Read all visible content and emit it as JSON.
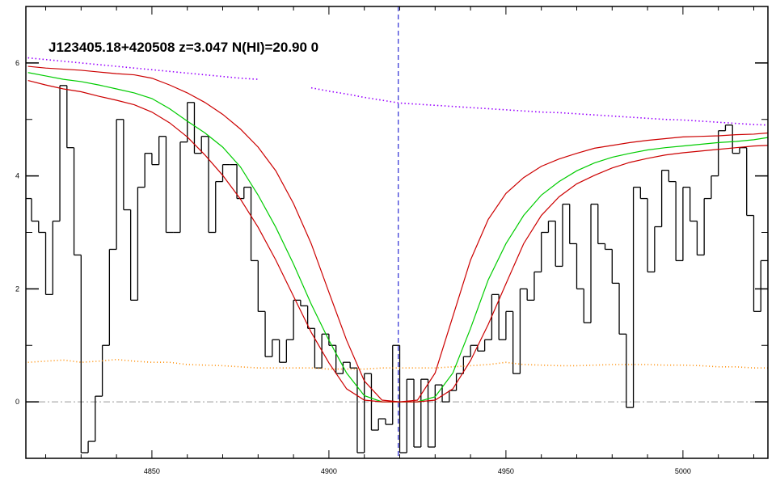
{
  "chart_data": {
    "type": "line",
    "title": "J123405.18+420508 z=3.047 N(HI)=20.90 0",
    "xlim": [
      4814.4,
      5024
    ],
    "ylim": [
      -1,
      7
    ],
    "xticks": [
      4850,
      4900,
      4950,
      5000
    ],
    "yticks": [
      0,
      2,
      4,
      6
    ],
    "xminorticks": [
      4820,
      4830,
      4840,
      4860,
      4870,
      4880,
      4890,
      4910,
      4920,
      4930,
      4940,
      4960,
      4970,
      4980,
      4990,
      5010,
      5020
    ],
    "yminorticks": [
      -1,
      1,
      3,
      5
    ],
    "zero_line": 0,
    "vline": {
      "x": 4919.6,
      "color": "#0000cc"
    },
    "spectrum": {
      "color": "#000000",
      "step": true,
      "x": [
        4815,
        4817,
        4819,
        4821,
        4823,
        4825,
        4827,
        4829,
        4831,
        4833,
        4835,
        4837,
        4839,
        4841,
        4843,
        4845,
        4847,
        4849,
        4851,
        4853,
        4855,
        4857,
        4859,
        4861,
        4863,
        4865,
        4867,
        4869,
        4871,
        4873,
        4875,
        4877,
        4879,
        4881,
        4883,
        4885,
        4887,
        4889,
        4891,
        4893,
        4895,
        4897,
        4899,
        4901,
        4903,
        4905,
        4907,
        4909,
        4911,
        4913,
        4915,
        4917,
        4919,
        4921,
        4923,
        4925,
        4927,
        4929,
        4931,
        4933,
        4935,
        4937,
        4939,
        4941,
        4943,
        4945,
        4947,
        4949,
        4951,
        4953,
        4955,
        4957,
        4959,
        4961,
        4963,
        4965,
        4967,
        4969,
        4971,
        4973,
        4975,
        4977,
        4979,
        4981,
        4983,
        4985,
        4987,
        4989,
        4991,
        4993,
        4995,
        4997,
        4999,
        5001,
        5003,
        5005,
        5007,
        5009,
        5011,
        5013,
        5015,
        5017,
        5019,
        5021,
        5023
      ],
      "values": [
        3.6,
        3.2,
        3.0,
        1.9,
        3.2,
        5.6,
        4.5,
        2.6,
        -0.9,
        -0.7,
        0.1,
        1.0,
        2.7,
        5.0,
        3.4,
        1.8,
        3.8,
        4.4,
        4.2,
        4.7,
        3.0,
        3.0,
        4.6,
        5.3,
        4.4,
        4.7,
        3.0,
        3.9,
        4.2,
        4.2,
        3.6,
        3.8,
        2.5,
        1.6,
        0.8,
        1.1,
        0.7,
        1.1,
        1.8,
        1.7,
        1.3,
        0.6,
        1.2,
        1.0,
        0.5,
        0.7,
        0.6,
        -0.9,
        0.5,
        -0.5,
        -0.3,
        -0.4,
        1.0,
        -0.9,
        0.4,
        -0.8,
        0.4,
        -0.8,
        0.3,
        0.0,
        0.2,
        0.5,
        0.8,
        1.0,
        0.9,
        1.1,
        1.9,
        1.1,
        1.6,
        0.5,
        2.0,
        1.8,
        2.3,
        3.0,
        3.2,
        2.4,
        3.5,
        2.8,
        2.0,
        1.4,
        3.5,
        2.8,
        2.7,
        2.1,
        1.2,
        -0.1,
        3.8,
        3.6,
        2.3,
        3.1,
        4.1,
        3.9,
        2.5,
        3.8,
        3.2,
        2.6,
        3.6,
        4.0,
        4.8,
        4.9,
        4.4,
        4.5,
        3.3,
        1.6,
        2.5
      ]
    },
    "x": [
      4815,
      4820,
      4825,
      4830,
      4835,
      4840,
      4845,
      4850,
      4855,
      4860,
      4865,
      4870,
      4875,
      4880,
      4885,
      4890,
      4895,
      4900,
      4905,
      4910,
      4915,
      4920,
      4925,
      4930,
      4935,
      4940,
      4945,
      4950,
      4955,
      4960,
      4965,
      4970,
      4975,
      4980,
      4985,
      4990,
      4995,
      5000,
      5005,
      5010,
      5015,
      5020,
      5024
    ],
    "series": [
      {
        "color": "#ff8c00",
        "dash": "1 3",
        "values": [
          0.7,
          0.72,
          0.74,
          0.7,
          0.72,
          0.75,
          0.72,
          0.7,
          0.7,
          0.66,
          0.65,
          0.64,
          0.62,
          0.6,
          0.6,
          0.6,
          0.6,
          0.58,
          0.58,
          0.58,
          0.6,
          0.6,
          0.6,
          0.6,
          0.62,
          0.64,
          0.66,
          0.7,
          0.66,
          0.65,
          0.64,
          0.64,
          0.65,
          0.66,
          0.66,
          0.66,
          0.65,
          0.65,
          0.64,
          0.62,
          0.62,
          0.6,
          0.6
        ]
      },
      {
        "color": "#9900ff",
        "dash": "1.5 3",
        "values": [
          6.09,
          6.06,
          6.03,
          6.0,
          5.97,
          5.94,
          5.91,
          5.88,
          5.85,
          5.82,
          5.79,
          5.76,
          5.73,
          5.71,
          null,
          null,
          5.56,
          5.5,
          5.45,
          5.39,
          5.34,
          5.29,
          5.27,
          5.25,
          5.23,
          5.21,
          5.19,
          5.17,
          5.15,
          5.13,
          5.12,
          5.1,
          5.08,
          5.06,
          5.04,
          5.02,
          5.0,
          4.99,
          4.97,
          4.95,
          4.93,
          4.91,
          4.9
        ]
      },
      {
        "color": "#00cc00",
        "dash": "none",
        "values": [
          5.83,
          5.77,
          5.71,
          5.67,
          5.61,
          5.54,
          5.47,
          5.37,
          5.19,
          4.97,
          4.76,
          4.51,
          4.16,
          3.66,
          3.09,
          2.44,
          1.73,
          1.09,
          0.51,
          0.11,
          0,
          0,
          0,
          0.09,
          0.51,
          1.3,
          2.16,
          2.8,
          3.3,
          3.66,
          3.9,
          4.09,
          4.23,
          4.33,
          4.4,
          4.46,
          4.5,
          4.53,
          4.56,
          4.59,
          4.61,
          4.64,
          4.68
        ]
      },
      {
        "color": "#cc0000",
        "dash": "none",
        "values": [
          5.94,
          5.91,
          5.89,
          5.87,
          5.84,
          5.81,
          5.79,
          5.73,
          5.61,
          5.47,
          5.3,
          5.09,
          4.83,
          4.51,
          4.09,
          3.51,
          2.8,
          1.94,
          1.09,
          0.37,
          0.03,
          0,
          0.03,
          0.51,
          1.51,
          2.51,
          3.23,
          3.69,
          3.97,
          4.17,
          4.3,
          4.4,
          4.49,
          4.54,
          4.59,
          4.63,
          4.66,
          4.69,
          4.7,
          4.71,
          4.73,
          4.74,
          4.76
        ]
      },
      {
        "color": "#cc0000",
        "dash": "none",
        "values": [
          5.69,
          5.61,
          5.54,
          5.49,
          5.41,
          5.34,
          5.26,
          5.13,
          4.94,
          4.69,
          4.37,
          4.01,
          3.59,
          3.09,
          2.51,
          1.87,
          1.23,
          0.69,
          0.23,
          0.03,
          0,
          0,
          0,
          0.03,
          0.23,
          0.73,
          1.37,
          2.09,
          2.8,
          3.3,
          3.63,
          3.86,
          4.01,
          4.14,
          4.24,
          4.31,
          4.37,
          4.41,
          4.44,
          4.47,
          4.5,
          4.53,
          4.54
        ]
      }
    ]
  }
}
